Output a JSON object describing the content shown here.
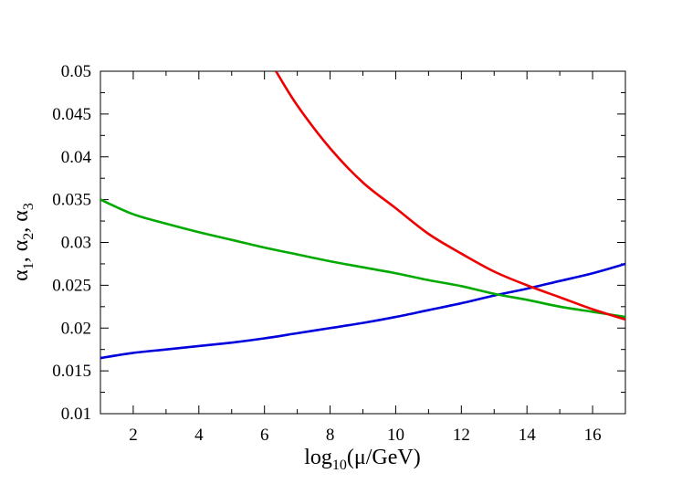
{
  "chart_data": {
    "type": "line",
    "xlabel": "log10(μ/GeV)",
    "ylabel": "α1, α2, α3",
    "xlim": [
      1,
      17
    ],
    "ylim": [
      0.01,
      0.05
    ],
    "x_ticks": [
      2,
      4,
      6,
      8,
      10,
      12,
      14,
      16
    ],
    "y_ticks": [
      0.01,
      0.015,
      0.02,
      0.025,
      0.03,
      0.035,
      0.04,
      0.045,
      0.05
    ],
    "x_tick_labels": [
      "2",
      "4",
      "6",
      "8",
      "10",
      "12",
      "14",
      "16"
    ],
    "y_tick_labels": [
      "0.01",
      "0.015",
      "0.02",
      "0.025",
      "0.03",
      "0.035",
      "0.04",
      "0.045",
      "0.05"
    ],
    "grid": false,
    "legend": "none",
    "series": [
      {
        "color": "#0000dd",
        "x": [
          1,
          2,
          3,
          4,
          5,
          6,
          7,
          8,
          9,
          10,
          11,
          12,
          13,
          14,
          15,
          16,
          17
        ],
        "values": [
          0.0165,
          0.0171,
          0.0175,
          0.0179,
          0.0183,
          0.0188,
          0.0194,
          0.02,
          0.0206,
          0.0213,
          0.0221,
          0.0229,
          0.0238,
          0.0246,
          0.0255,
          0.0264,
          0.0275
        ]
      },
      {
        "color": "#00aa00",
        "x": [
          1,
          2,
          3,
          4,
          5,
          6,
          7,
          8,
          9,
          10,
          11,
          12,
          13,
          14,
          15,
          16,
          17
        ],
        "values": [
          0.035,
          0.0333,
          0.0322,
          0.0312,
          0.0303,
          0.0294,
          0.0286,
          0.0278,
          0.0271,
          0.0264,
          0.0256,
          0.0249,
          0.024,
          0.0233,
          0.0225,
          0.0219,
          0.0213
        ]
      },
      {
        "color": "#ee0000",
        "x": [
          6.35,
          7,
          8,
          9,
          10,
          11,
          12,
          13,
          14,
          15,
          16,
          17
        ],
        "values": [
          0.05,
          0.046,
          0.041,
          0.037,
          0.034,
          0.031,
          0.0287,
          0.0266,
          0.025,
          0.0236,
          0.0222,
          0.021
        ]
      }
    ]
  }
}
